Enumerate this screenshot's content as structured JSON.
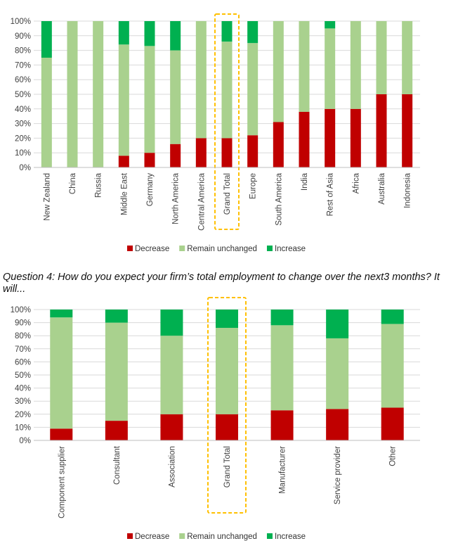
{
  "colors": {
    "decrease": "#C00000",
    "remain": "#A9D18E",
    "increase": "#00B050",
    "highlight": "#FFC000",
    "grid": "#D9D9D9"
  },
  "question": "Question 4: How do you expect your firm’s total employment to change over the next3 months? It will...",
  "chart_data": [
    {
      "type": "bar",
      "stacked": true,
      "percent": true,
      "ylim": [
        0,
        100
      ],
      "y_ticks": [
        "0%",
        "10%",
        "20%",
        "30%",
        "40%",
        "50%",
        "60%",
        "70%",
        "80%",
        "90%",
        "100%"
      ],
      "grid": true,
      "legend_position": "bottom",
      "highlighted_category": "Grand Total",
      "categories": [
        "New Zealand",
        "China",
        "Russia",
        "Middle East",
        "Germany",
        "North America",
        "Central America",
        "Grand Total",
        "Europe",
        "South America",
        "India",
        "Rest of Asia",
        "Africa",
        "Australia",
        "Indonesia"
      ],
      "series": [
        {
          "name": "Decrease",
          "values": [
            0,
            0,
            0,
            8,
            10,
            16,
            20,
            20,
            22,
            31,
            38,
            40,
            40,
            50,
            50
          ]
        },
        {
          "name": "Remain unchanged",
          "values": [
            75,
            100,
            100,
            76,
            73,
            64,
            80,
            66,
            63,
            69,
            62,
            55,
            60,
            50,
            50
          ]
        },
        {
          "name": "Increase",
          "values": [
            25,
            0,
            0,
            16,
            17,
            20,
            0,
            14,
            15,
            0,
            0,
            5,
            0,
            0,
            0
          ]
        }
      ]
    },
    {
      "type": "bar",
      "stacked": true,
      "percent": true,
      "ylim": [
        0,
        100
      ],
      "y_ticks": [
        "0%",
        "10%",
        "20%",
        "30%",
        "40%",
        "50%",
        "60%",
        "70%",
        "80%",
        "90%",
        "100%"
      ],
      "grid": true,
      "legend_position": "bottom",
      "highlighted_category": "Grand Total",
      "categories": [
        "Component supplier",
        "Consultant",
        "Association",
        "Grand Total",
        "Manufacturer",
        "Service provider",
        "Other"
      ],
      "series": [
        {
          "name": "Decrease",
          "values": [
            9,
            15,
            20,
            20,
            23,
            24,
            25
          ]
        },
        {
          "name": "Remain unchanged",
          "values": [
            85,
            75,
            60,
            66,
            65,
            54,
            64
          ]
        },
        {
          "name": "Increase",
          "values": [
            6,
            10,
            20,
            14,
            12,
            22,
            11
          ]
        }
      ]
    }
  ]
}
